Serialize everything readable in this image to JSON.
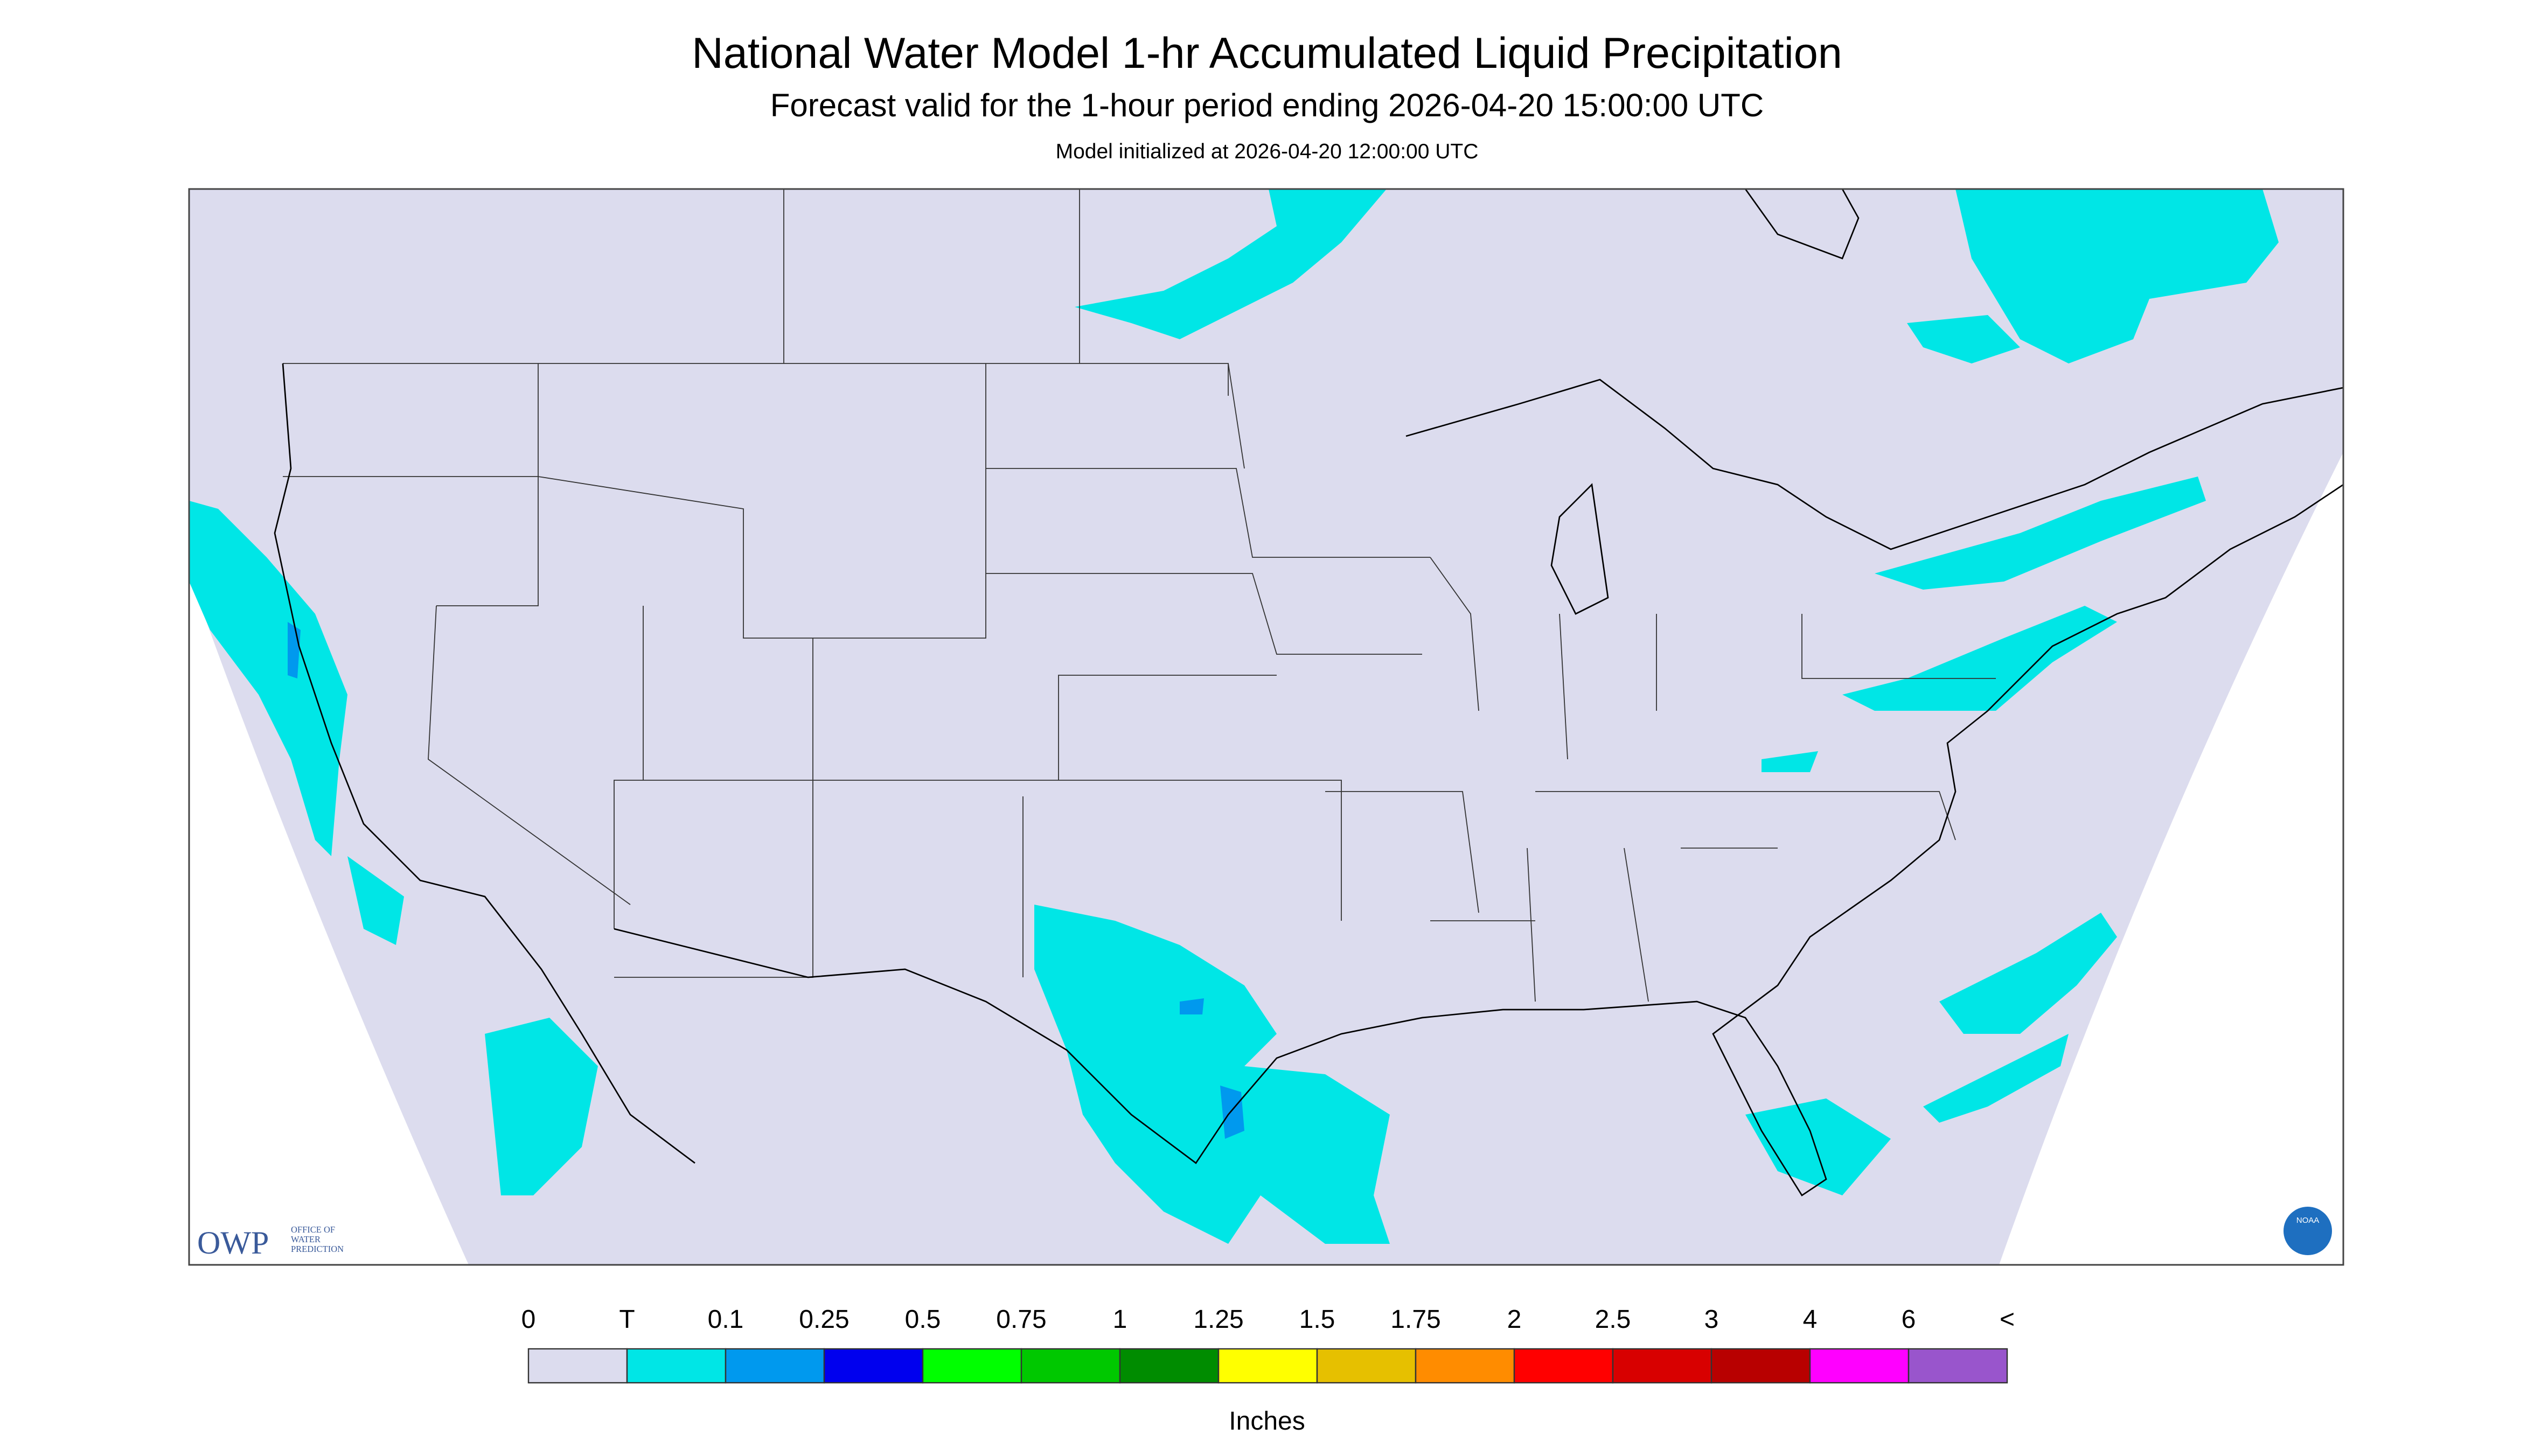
{
  "header": {
    "title": "National Water Model 1-hr Accumulated Liquid Precipitation",
    "subtitle": "Forecast valid for the 1-hour period ending 2026-04-20 15:00:00 UTC",
    "init": "Model initialized at 2026-04-20 12:00:00 UTC"
  },
  "legend": {
    "labels": [
      "0",
      "T",
      "0.1",
      "0.25",
      "0.5",
      "0.75",
      "1",
      "1.25",
      "1.5",
      "1.75",
      "2",
      "2.5",
      "3",
      "4",
      "6",
      "<"
    ],
    "colors": [
      "#dcdcee",
      "#00e6e6",
      "#0099ee",
      "#0000ee",
      "#00ff00",
      "#00c800",
      "#008c00",
      "#ffff00",
      "#e6c000",
      "#ff8c00",
      "#ff0000",
      "#d80000",
      "#b80000",
      "#ff00ff",
      "#9955cc"
    ],
    "units": "Inches"
  },
  "logos": {
    "owp": "OWP",
    "owp_sub": [
      "OFFICE OF",
      "WATER",
      "PREDICTION"
    ],
    "noaa": "NOAA"
  }
}
